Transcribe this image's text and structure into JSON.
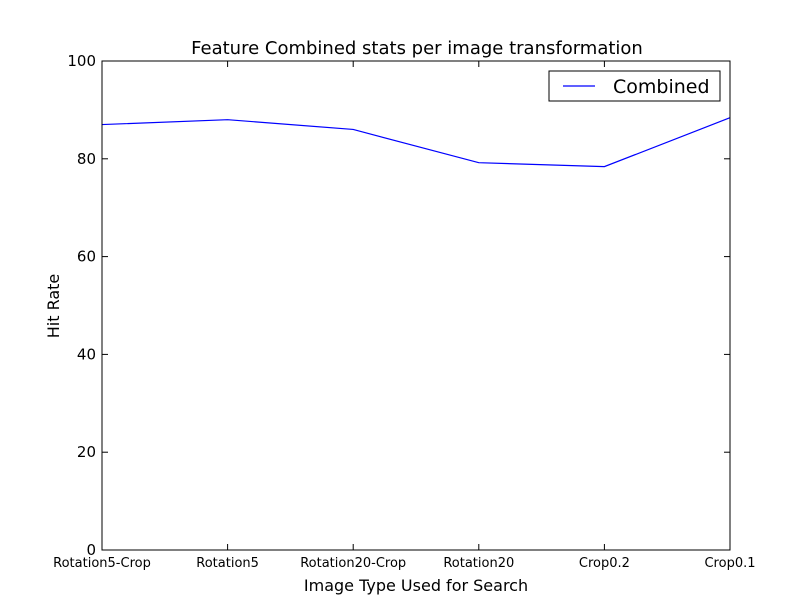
{
  "chart_data": {
    "type": "line",
    "title": "Feature Combined stats per image transformation",
    "xlabel": "Image Type Used for Search",
    "ylabel": "Hit Rate",
    "categories": [
      "Rotation5-Crop",
      "Rotation5",
      "Rotation20-Crop",
      "Rotation20",
      "Crop0.2",
      "Crop0.1"
    ],
    "ylim": [
      0,
      100
    ],
    "yticks": [
      0,
      20,
      40,
      60,
      80,
      100
    ],
    "grid": false,
    "legend_position": "top-right",
    "series": [
      {
        "name": "Combined",
        "color": "#0000ff",
        "values": [
          87.0,
          88.0,
          86.0,
          79.2,
          78.4,
          88.4
        ]
      }
    ]
  }
}
